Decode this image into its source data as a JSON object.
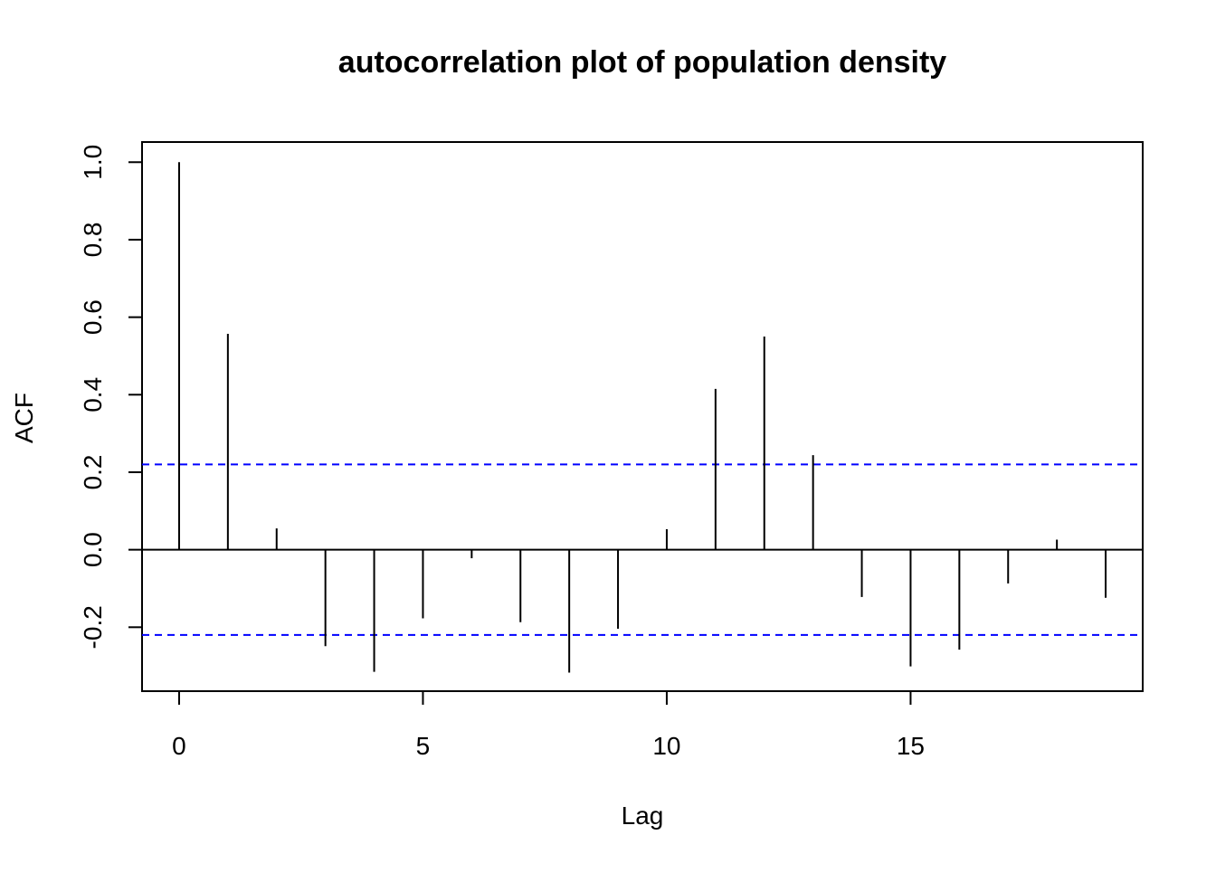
{
  "chart_data": {
    "type": "bar",
    "title": "autocorrelation plot of population density",
    "xlabel": "Lag",
    "ylabel": "ACF",
    "xlim": [
      -0.76,
      19.76
    ],
    "ylim": [
      -0.365,
      1.052
    ],
    "x_ticks": [
      0,
      5,
      10,
      15
    ],
    "x_tick_labels": [
      "0",
      "5",
      "10",
      "15"
    ],
    "y_ticks": [
      -0.2,
      0.0,
      0.2,
      0.4,
      0.6,
      0.8,
      1.0
    ],
    "y_tick_labels": [
      "-0.2",
      "0.0",
      "0.2",
      "0.4",
      "0.6",
      "0.8",
      "1.0"
    ],
    "lags": [
      0,
      1,
      2,
      3,
      4,
      5,
      6,
      7,
      8,
      9,
      10,
      11,
      12,
      13,
      14,
      15,
      16,
      17,
      18,
      19
    ],
    "values": [
      1.0,
      0.557,
      0.055,
      -0.249,
      -0.315,
      -0.177,
      -0.022,
      -0.187,
      -0.317,
      -0.204,
      0.053,
      0.415,
      0.55,
      0.244,
      -0.122,
      -0.301,
      -0.258,
      -0.087,
      0.026,
      -0.124
    ],
    "confidence_bounds": [
      0.22,
      -0.22
    ],
    "zero_line": 0,
    "grid": false,
    "colors": {
      "spikes": "#000000",
      "bounds": "#0000ff",
      "frame": "#000000"
    }
  }
}
